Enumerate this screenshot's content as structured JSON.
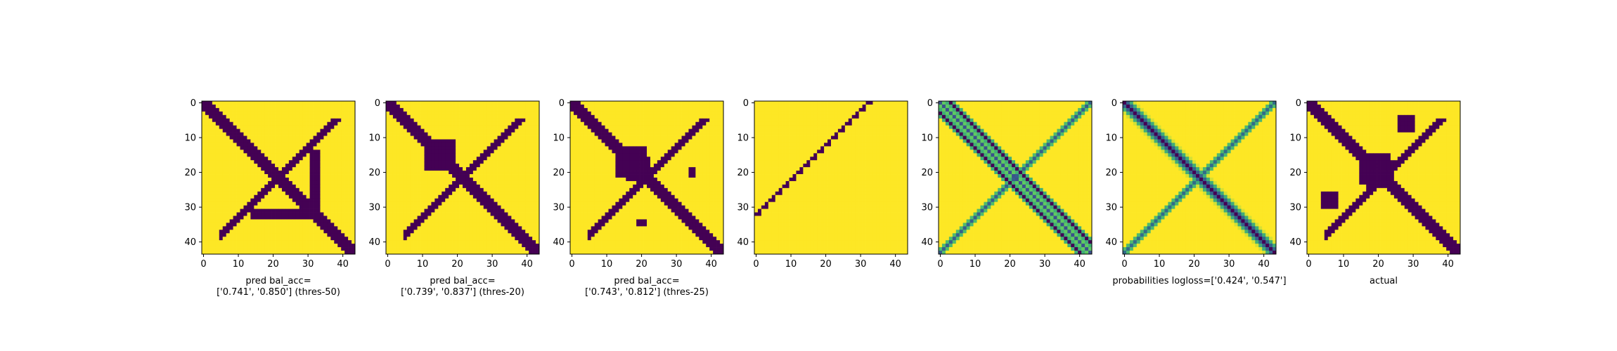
{
  "chart_data": [
    {
      "type": "heatmap",
      "matrix_size": 44,
      "xlim": [
        0,
        43
      ],
      "ylim": [
        43,
        0
      ],
      "xticks": [
        0,
        10,
        20,
        30,
        40
      ],
      "yticks": [
        0,
        10,
        20,
        30,
        40
      ],
      "colormap": "viridis",
      "pattern": "binary",
      "thickness": 2,
      "regions": [
        [
          31,
          33,
          14,
          33
        ]
      ],
      "title_lines": [
        "pred bal_acc=",
        "['0.741', '0.850'] (thres-50)"
      ]
    },
    {
      "type": "heatmap",
      "matrix_size": 44,
      "xlim": [
        0,
        43
      ],
      "ylim": [
        43,
        0
      ],
      "xticks": [
        0,
        10,
        20,
        30,
        40
      ],
      "yticks": [
        0,
        10,
        20,
        30,
        40
      ],
      "colormap": "viridis",
      "pattern": "binary",
      "thickness": 2.6,
      "regions": [
        [
          13,
          19,
          11,
          16
        ]
      ],
      "title_lines": [
        "pred bal_acc=",
        "['0.739', '0.837'] (thres-20)"
      ]
    },
    {
      "type": "heatmap",
      "matrix_size": 44,
      "xlim": [
        0,
        43
      ],
      "ylim": [
        43,
        0
      ],
      "xticks": [
        0,
        10,
        20,
        30,
        40
      ],
      "yticks": [
        0,
        10,
        20,
        30,
        40
      ],
      "colormap": "viridis",
      "pattern": "binary",
      "thickness": 2.6,
      "regions": [
        [
          16,
          21,
          13,
          22
        ],
        [
          19,
          21,
          34,
          35
        ]
      ],
      "title_lines": [
        "pred bal_acc=",
        "['0.743', '0.812'] (thres-25)"
      ]
    },
    {
      "type": "heatmap",
      "matrix_size": 44,
      "xlim": [
        0,
        43
      ],
      "ylim": [
        43,
        0
      ],
      "xticks": [
        0,
        10,
        20,
        30,
        40
      ],
      "yticks": [
        0,
        10,
        20,
        30,
        40
      ],
      "colormap": "viridis",
      "pattern": "anti_diag_only",
      "title_lines": []
    },
    {
      "type": "heatmap",
      "matrix_size": 44,
      "xlim": [
        0,
        43
      ],
      "ylim": [
        43,
        0
      ],
      "xticks": [
        0,
        10,
        20,
        30,
        40
      ],
      "yticks": [
        0,
        10,
        20,
        30,
        40
      ],
      "colormap": "viridis",
      "pattern": "prob_double",
      "title_lines": []
    },
    {
      "type": "heatmap",
      "matrix_size": 44,
      "xlim": [
        0,
        43
      ],
      "ylim": [
        43,
        0
      ],
      "xticks": [
        0,
        10,
        20,
        30,
        40
      ],
      "yticks": [
        0,
        10,
        20,
        30,
        40
      ],
      "colormap": "viridis",
      "pattern": "prob",
      "title_lines": [
        "probabilities logloss=['0.424', '0.547']"
      ]
    },
    {
      "type": "heatmap",
      "matrix_size": 44,
      "xlim": [
        0,
        43
      ],
      "ylim": [
        43,
        0
      ],
      "xticks": [
        0,
        10,
        20,
        30,
        40
      ],
      "yticks": [
        0,
        10,
        20,
        30,
        40
      ],
      "colormap": "viridis",
      "pattern": "binary",
      "thickness": 2,
      "regions": [
        [
          15,
          24,
          17,
          23
        ],
        [
          4,
          8,
          26,
          30
        ]
      ],
      "title_lines": [
        "actual"
      ]
    }
  ]
}
